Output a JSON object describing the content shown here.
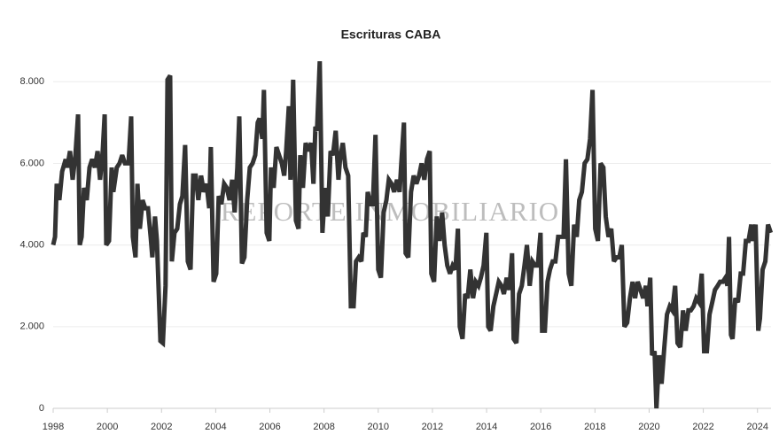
{
  "chart_data": {
    "type": "line",
    "title": "Escrituras CABA",
    "watermark": "REPORTE INMOBILIARIO",
    "color": "#333333",
    "grid": true,
    "xlim": [
      1998,
      2024.5
    ],
    "xticks": [
      1998,
      2000,
      2002,
      2004,
      2006,
      2008,
      2010,
      2012,
      2014,
      2016,
      2018,
      2020,
      2022,
      2024
    ],
    "ylim": [
      0,
      8700
    ],
    "yticks": [
      0,
      {
        "value": 2000,
        "label": "2.000"
      },
      {
        "value": 4000,
        "label": "4.000"
      },
      {
        "value": 6000,
        "label": "6.000"
      },
      {
        "value": 8000,
        "label": "8.000"
      }
    ],
    "x": [
      1998.0,
      1998.07,
      1998.13,
      1998.23,
      1998.33,
      1998.46,
      1998.52,
      1998.62,
      1998.72,
      1998.82,
      1998.92,
      1998.98,
      1999.05,
      1999.14,
      1999.24,
      1999.34,
      1999.44,
      1999.54,
      1999.64,
      1999.73,
      1999.83,
      1999.9,
      1999.96,
      2000.06,
      2000.16,
      2000.22,
      2000.35,
      2000.45,
      2000.55,
      2000.65,
      2000.78,
      2000.88,
      2000.94,
      2001.04,
      2001.11,
      2001.2,
      2001.3,
      2001.4,
      2001.5,
      2001.6,
      2001.66,
      2001.76,
      2001.83,
      2001.96,
      2002.05,
      2002.15,
      2002.22,
      2002.32,
      2002.38,
      2002.48,
      2002.58,
      2002.68,
      2002.77,
      2002.87,
      2002.97,
      2003.07,
      2003.17,
      2003.26,
      2003.36,
      2003.46,
      2003.56,
      2003.66,
      2003.76,
      2003.82,
      2003.92,
      2004.02,
      2004.11,
      2004.21,
      2004.31,
      2004.41,
      2004.51,
      2004.61,
      2004.7,
      2004.8,
      2004.87,
      2004.97,
      2005.06,
      2005.16,
      2005.26,
      2005.36,
      2005.46,
      2005.55,
      2005.62,
      2005.72,
      2005.78,
      2005.88,
      2005.98,
      2006.04,
      2006.14,
      2006.24,
      2006.34,
      2006.44,
      2006.53,
      2006.6,
      2006.7,
      2006.76,
      2006.86,
      2006.96,
      2007.06,
      2007.12,
      2007.22,
      2007.32,
      2007.42,
      2007.52,
      2007.61,
      2007.68,
      2007.74,
      2007.84,
      2007.94,
      2008.04,
      2008.14,
      2008.24,
      2008.33,
      2008.43,
      2008.53,
      2008.59,
      2008.69,
      2008.79,
      2008.89,
      2008.99,
      2009.09,
      2009.18,
      2009.28,
      2009.38,
      2009.45,
      2009.54,
      2009.61,
      2009.71,
      2009.8,
      2009.9,
      2010.0,
      2010.1,
      2010.2,
      2010.3,
      2010.39,
      2010.49,
      2010.59,
      2010.69,
      2010.79,
      2010.85,
      2010.95,
      2011.01,
      2011.11,
      2011.21,
      2011.31,
      2011.41,
      2011.51,
      2011.6,
      2011.7,
      2011.8,
      2011.9,
      2011.96,
      2012.06,
      2012.16,
      2012.26,
      2012.36,
      2012.45,
      2012.55,
      2012.65,
      2012.75,
      2012.85,
      2012.94,
      2013.01,
      2013.11,
      2013.21,
      2013.3,
      2013.4,
      2013.5,
      2013.6,
      2013.7,
      2013.79,
      2013.89,
      2013.99,
      2014.06,
      2014.15,
      2014.25,
      2014.35,
      2014.45,
      2014.55,
      2014.64,
      2014.74,
      2014.84,
      2014.94,
      2015.0,
      2015.1,
      2015.2,
      2015.3,
      2015.4,
      2015.49,
      2015.59,
      2015.69,
      2015.79,
      2015.89,
      2015.99,
      2016.05,
      2016.15,
      2016.25,
      2016.34,
      2016.44,
      2016.54,
      2016.64,
      2016.74,
      2016.84,
      2016.93,
      2017.03,
      2017.13,
      2017.23,
      2017.33,
      2017.42,
      2017.52,
      2017.62,
      2017.72,
      2017.82,
      2017.91,
      2018.01,
      2018.11,
      2018.21,
      2018.31,
      2018.4,
      2018.5,
      2018.6,
      2018.7,
      2018.8,
      2018.9,
      2018.99,
      2019.09,
      2019.19,
      2019.29,
      2019.39,
      2019.48,
      2019.58,
      2019.68,
      2019.78,
      2019.88,
      2019.94,
      2020.04,
      2020.11,
      2020.2,
      2020.27,
      2020.37,
      2020.46,
      2020.56,
      2020.66,
      2020.76,
      2020.86,
      2020.96,
      2021.05,
      2021.15,
      2021.25,
      2021.35,
      2021.45,
      2021.54,
      2021.64,
      2021.74,
      2021.84,
      2021.94,
      2022.03,
      2022.13,
      2022.23,
      2022.33,
      2022.43,
      2022.53,
      2022.62,
      2022.72,
      2022.82,
      2022.89,
      2022.95,
      2023.02,
      2023.08,
      2023.18,
      2023.28,
      2023.38,
      2023.47,
      2023.57,
      2023.67,
      2023.77,
      2023.83,
      2023.93,
      2024.03,
      2024.09,
      2024.19,
      2024.29,
      2024.39,
      2024.49
    ],
    "values": [
      4000,
      4200,
      5500,
      5100,
      5800,
      6100,
      5900,
      6300,
      5600,
      6200,
      7200,
      4000,
      4200,
      5400,
      5100,
      5900,
      6100,
      5900,
      6300,
      5600,
      6300,
      7200,
      4000,
      4100,
      5900,
      5300,
      5900,
      6000,
      6200,
      6000,
      6000,
      7150,
      4200,
      3700,
      5500,
      4400,
      5100,
      4900,
      4900,
      4200,
      3700,
      4700,
      4100,
      1650,
      1600,
      3000,
      8050,
      8150,
      3600,
      4300,
      4400,
      5000,
      5200,
      6450,
      3600,
      3400,
      5700,
      5700,
      5100,
      5700,
      5300,
      5500,
      4900,
      6400,
      3100,
      3300,
      5200,
      5000,
      5500,
      5400,
      5100,
      5600,
      4800,
      5900,
      7150,
      3550,
      3700,
      5100,
      5900,
      6000,
      6200,
      7000,
      7100,
      6600,
      7800,
      4300,
      4100,
      5900,
      5400,
      6400,
      6200,
      6000,
      5700,
      6300,
      7400,
      5600,
      8050,
      4600,
      4400,
      6200,
      5400,
      6500,
      6300,
      6500,
      5500,
      6900,
      6800,
      8500,
      4300,
      5400,
      4700,
      6300,
      6200,
      6800,
      5600,
      6100,
      6500,
      5900,
      5700,
      2500,
      2500,
      3600,
      3700,
      3600,
      4300,
      4200,
      5300,
      5000,
      5000,
      6700,
      3400,
      3200,
      4800,
      5100,
      5600,
      5500,
      5300,
      5600,
      5300,
      6000,
      7000,
      3800,
      3700,
      5300,
      5700,
      5500,
      5700,
      6000,
      5600,
      6100,
      6300,
      3300,
      3100,
      4700,
      4100,
      4800,
      4000,
      3500,
      3300,
      3500,
      3400,
      4400,
      2000,
      1700,
      2800,
      2700,
      3400,
      2700,
      3100,
      3000,
      3200,
      3500,
      4300,
      2000,
      1900,
      2500,
      2800,
      3100,
      3000,
      2800,
      3200,
      2900,
      3800,
      1700,
      1600,
      2800,
      3000,
      3500,
      4000,
      3000,
      3600,
      3500,
      3500,
      4300,
      1900,
      1900,
      3100,
      3400,
      3600,
      3600,
      4200,
      4200,
      4200,
      6100,
      3300,
      3000,
      4500,
      4200,
      5100,
      5300,
      6000,
      6100,
      6600,
      7800,
      4400,
      4100,
      6000,
      5900,
      4700,
      4200,
      4400,
      3600,
      3700,
      3700,
      4000,
      2000,
      2100,
      2700,
      3100,
      2700,
      3100,
      2900,
      2700,
      3000,
      2500,
      3200,
      1300,
      1400,
      0,
      1300,
      600,
      1500,
      2300,
      2500,
      2400,
      3000,
      1600,
      1500,
      2400,
      1900,
      2400,
      2400,
      2500,
      2700,
      2600,
      3300,
      1400,
      1400,
      2300,
      2600,
      2900,
      3000,
      3100,
      3100,
      3200,
      3000,
      4200,
      1800,
      1700,
      2700,
      2600,
      3300,
      3300,
      4100,
      4100,
      4500,
      4100,
      4500,
      1900,
      2200,
      3400,
      3600,
      4500,
      4300
    ]
  }
}
